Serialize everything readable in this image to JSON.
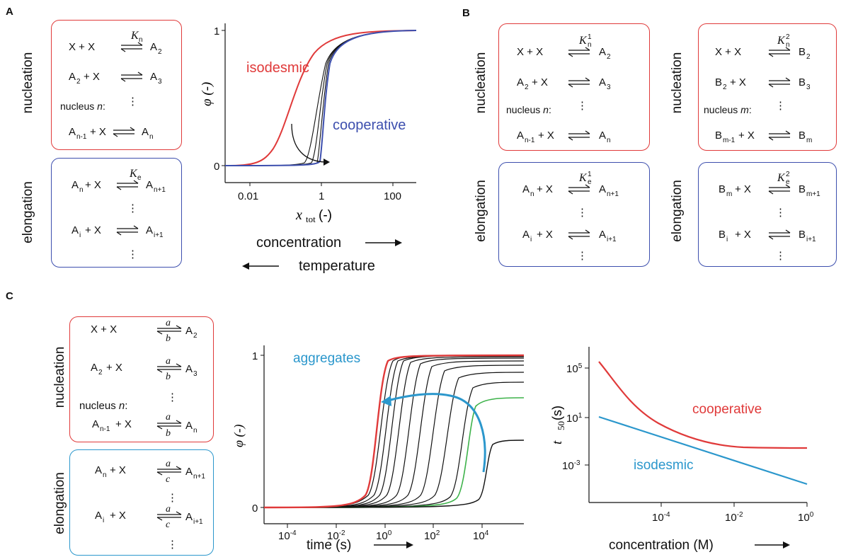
{
  "panels": {
    "a": "A",
    "b": "B",
    "c": "C"
  },
  "side_labels": {
    "nucleation": "nucleation",
    "elongation": "elongation"
  },
  "nucleus_n": "nucleus n:",
  "nucleus_m": "nucleus m:",
  "dots": "⋮",
  "plotA": {
    "ylabel": "φ (-)",
    "xlabel": "x",
    "xlabel_sub": "tot",
    "xlabel_unit": " (-)",
    "yticks": [
      "0",
      "1"
    ],
    "xticks": [
      "0.01",
      "1",
      "100"
    ],
    "isodesmic": "isodesmic",
    "cooperative": "cooperative",
    "concentration": "concentration",
    "temperature": "temperature",
    "colors": {
      "isodesmic": "#e03a3a",
      "cooperative": "#3d4fae"
    }
  },
  "plotC1": {
    "ylabel": "φ (-)",
    "xlabel": "time (s)",
    "yticks": [
      "0",
      "1"
    ],
    "xticks": [
      "-4",
      "-2",
      "0",
      "2",
      "4"
    ],
    "tick_base": "10",
    "aggregates": "aggregates",
    "colors": {
      "red": "#e03a3a",
      "green": "#3db24a",
      "arrow": "#2b97cc"
    }
  },
  "plotC2": {
    "ylabel": "t",
    "ylabel_sub": "50",
    "ylabel_unit": " (s)",
    "xlabel": "concentration (M)",
    "yticks": [
      "5",
      "1",
      "-3"
    ],
    "xticks": [
      "-4",
      "-2",
      "0"
    ],
    "tick_base": "10",
    "cooperative": "cooperative",
    "isodesmic": "isodesmic",
    "colors": {
      "cooperative": "#e03a3a",
      "isodesmic": "#2b97cc"
    }
  }
}
